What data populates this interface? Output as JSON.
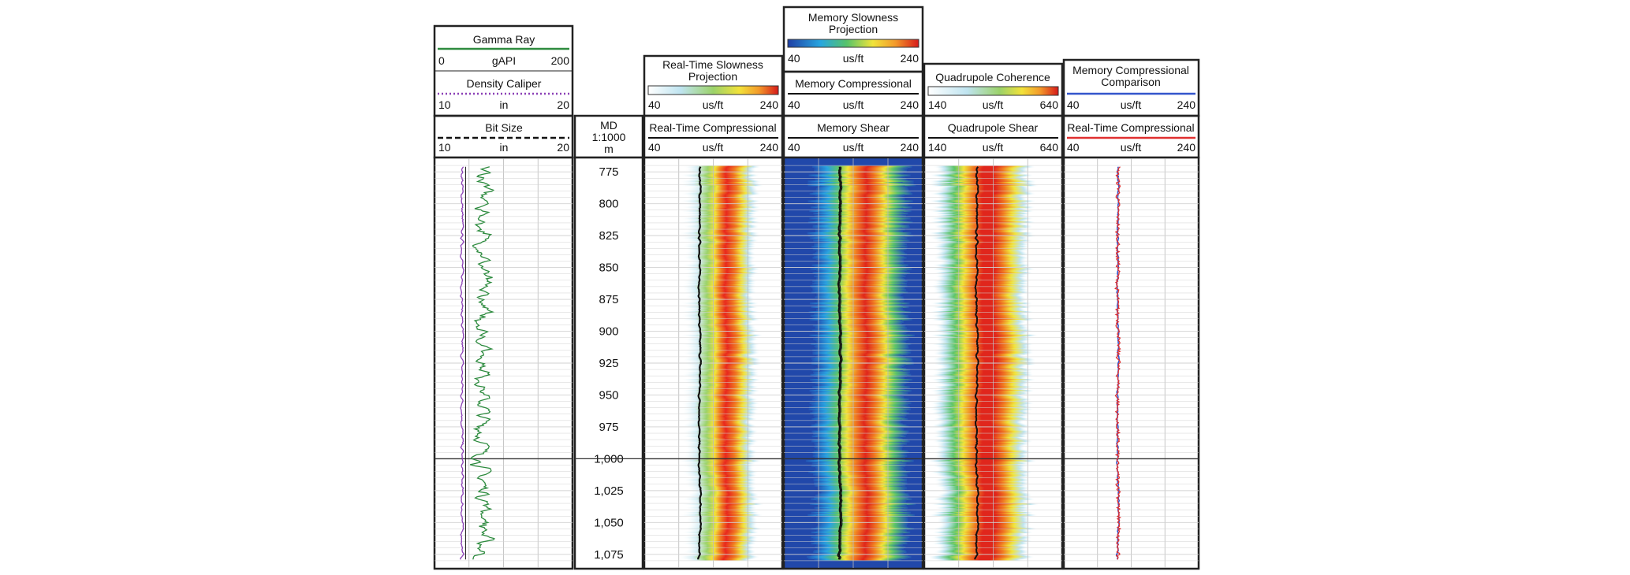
{
  "chart_data": {
    "type": "well-log",
    "depth": {
      "header_lines": [
        "MD",
        "1:1000",
        "m"
      ],
      "ticks": [
        "775",
        "800",
        "825",
        "850",
        "875",
        "900",
        "925",
        "950",
        "975",
        "1,000",
        "1,025",
        "1,050",
        "1,075"
      ],
      "tick_values": [
        775,
        800,
        825,
        850,
        875,
        900,
        925,
        950,
        975,
        1000,
        1025,
        1050,
        1075
      ],
      "range": [
        765,
        1085
      ],
      "heavy_line_at": 1000
    },
    "tracks": [
      {
        "curves": [
          {
            "name": "Gamma Ray",
            "unit": "gAPI",
            "min": "0",
            "max": "200",
            "color": "#2e8b3f",
            "line": "solid"
          },
          {
            "name": "Density Caliper",
            "unit": "in",
            "min": "10",
            "max": "20",
            "color": "#8a3fb5",
            "line": "dotted"
          },
          {
            "name": "Bit Size",
            "unit": "in",
            "min": "10",
            "max": "20",
            "color": "#111111",
            "line": "dashed"
          }
        ]
      },
      {
        "map": {
          "name": "Real-Time Slowness Projection",
          "unit": "us/ft",
          "min": "40",
          "max": "240"
        },
        "curve": {
          "name": "Real-Time Compressional",
          "unit": "us/ft",
          "min": "40",
          "max": "240",
          "color": "#111111"
        },
        "band_center_us_ft": 150
      },
      {
        "map": {
          "name": "Memory Slowness Projection",
          "unit": "us/ft",
          "min": "40",
          "max": "240"
        },
        "curves": [
          {
            "name": "Memory Compressional",
            "unit": "us/ft",
            "min": "40",
            "max": "240",
            "color": "#111111"
          },
          {
            "name": "Memory Shear",
            "unit": "us/ft",
            "min": "40",
            "max": "240",
            "color": "#111111"
          }
        ],
        "band_center_us_ft": 150
      },
      {
        "map": {
          "name": "Quadrupole Coherence",
          "unit": "us/ft",
          "min": "140",
          "max": "640"
        },
        "curve": {
          "name": "Quadrupole Shear",
          "unit": "us/ft",
          "min": "140",
          "max": "640",
          "color": "#111111"
        },
        "band_center_us_ft": 350
      },
      {
        "curves": [
          {
            "name": "Memory Compressional Comparison",
            "unit": "us/ft",
            "min": "40",
            "max": "240",
            "color": "#3355cc"
          },
          {
            "name": "Real-Time Compressional",
            "unit": "us/ft",
            "min": "40",
            "max": "240",
            "color": "#e03030"
          }
        ]
      }
    ]
  }
}
